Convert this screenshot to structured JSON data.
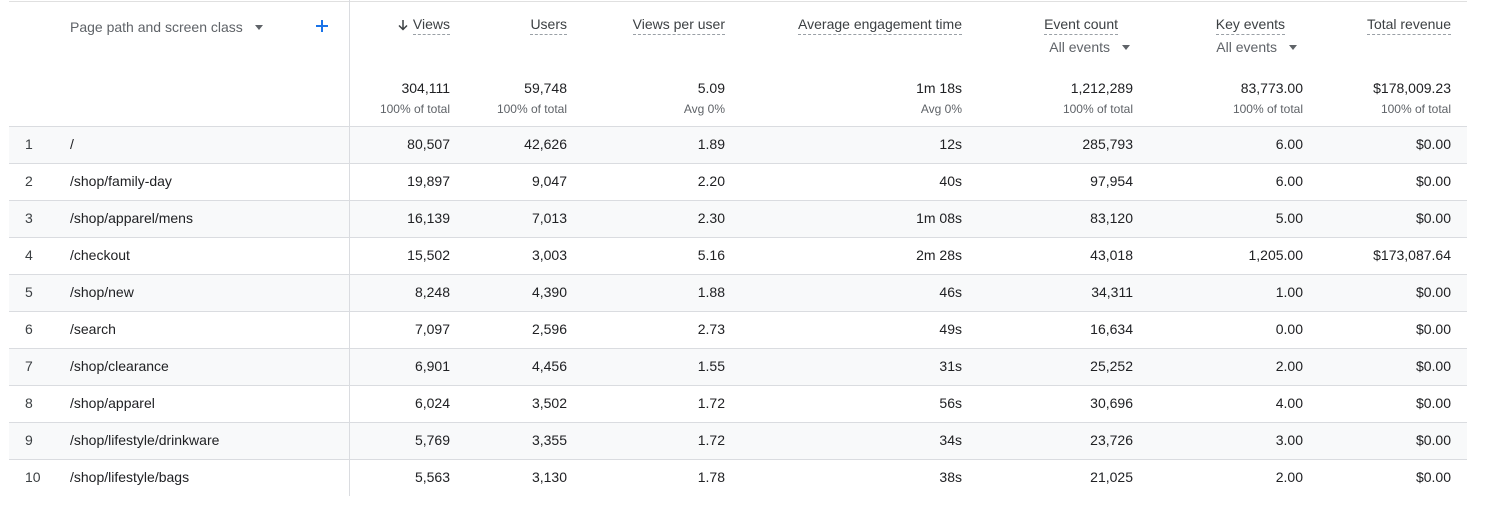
{
  "dimension": {
    "label": "Page path and screen class"
  },
  "columns": [
    {
      "key": "views",
      "label": "Views",
      "sorted": true,
      "total": "304,111",
      "total_sub": "100% of total"
    },
    {
      "key": "users",
      "label": "Users",
      "total": "59,748",
      "total_sub": "100% of total"
    },
    {
      "key": "views_per_user",
      "label": "Views per user",
      "total": "5.09",
      "total_sub": "Avg 0%"
    },
    {
      "key": "avg_engagement",
      "label": "Average engagement time",
      "total": "1m 18s",
      "total_sub": "Avg 0%"
    },
    {
      "key": "event_count",
      "label": "Event count",
      "filter": "All events",
      "total": "1,212,289",
      "total_sub": "100% of total"
    },
    {
      "key": "key_events",
      "label": "Key events",
      "filter": "All events",
      "total": "83,773.00",
      "total_sub": "100% of total"
    },
    {
      "key": "total_revenue",
      "label": "Total revenue",
      "total": "$178,009.23",
      "total_sub": "100% of total"
    }
  ],
  "rows": [
    {
      "index": "1",
      "path": "/",
      "values": [
        "80,507",
        "42,626",
        "1.89",
        "12s",
        "285,793",
        "6.00",
        "$0.00"
      ]
    },
    {
      "index": "2",
      "path": "/shop/family-day",
      "values": [
        "19,897",
        "9,047",
        "2.20",
        "40s",
        "97,954",
        "6.00",
        "$0.00"
      ]
    },
    {
      "index": "3",
      "path": "/shop/apparel/mens",
      "values": [
        "16,139",
        "7,013",
        "2.30",
        "1m 08s",
        "83,120",
        "5.00",
        "$0.00"
      ]
    },
    {
      "index": "4",
      "path": "/checkout",
      "values": [
        "15,502",
        "3,003",
        "5.16",
        "2m 28s",
        "43,018",
        "1,205.00",
        "$173,087.64"
      ]
    },
    {
      "index": "5",
      "path": "/shop/new",
      "values": [
        "8,248",
        "4,390",
        "1.88",
        "46s",
        "34,311",
        "1.00",
        "$0.00"
      ]
    },
    {
      "index": "6",
      "path": "/search",
      "values": [
        "7,097",
        "2,596",
        "2.73",
        "49s",
        "16,634",
        "0.00",
        "$0.00"
      ]
    },
    {
      "index": "7",
      "path": "/shop/clearance",
      "values": [
        "6,901",
        "4,456",
        "1.55",
        "31s",
        "25,252",
        "2.00",
        "$0.00"
      ]
    },
    {
      "index": "8",
      "path": "/shop/apparel",
      "values": [
        "6,024",
        "3,502",
        "1.72",
        "56s",
        "30,696",
        "4.00",
        "$0.00"
      ]
    },
    {
      "index": "9",
      "path": "/shop/lifestyle/drinkware",
      "values": [
        "5,769",
        "3,355",
        "1.72",
        "34s",
        "23,726",
        "3.00",
        "$0.00"
      ]
    },
    {
      "index": "10",
      "path": "/shop/lifestyle/bags",
      "values": [
        "5,563",
        "3,130",
        "1.78",
        "38s",
        "21,025",
        "2.00",
        "$0.00"
      ]
    }
  ],
  "icons": {
    "add": "plus-icon",
    "sort": "arrow-down-icon",
    "dropdown": "caret-down-icon"
  },
  "colors": {
    "accent": "#1a73e8",
    "row_alt": "#f8f9fa",
    "divider": "#dadce0"
  }
}
